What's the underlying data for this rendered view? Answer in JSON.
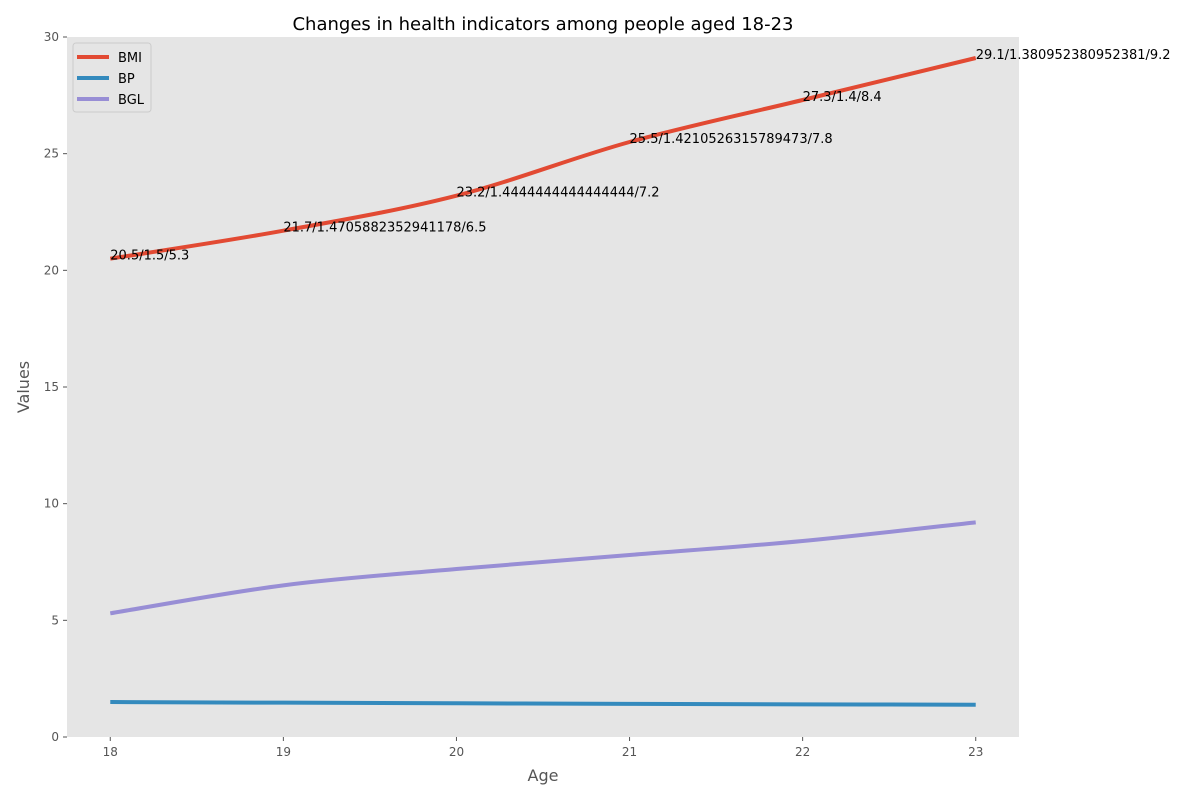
{
  "chart_data": {
    "type": "line",
    "title": "Changes in health indicators among people aged 18-23",
    "xlabel": "Age",
    "ylabel": "Values",
    "x": [
      18,
      19,
      20,
      21,
      22,
      23
    ],
    "xlim": [
      17.75,
      23.25
    ],
    "ylim": [
      0,
      30
    ],
    "xticks": [
      18,
      19,
      20,
      21,
      22,
      23
    ],
    "yticks": [
      0,
      5,
      10,
      15,
      20,
      25,
      30
    ],
    "grid": false,
    "legend": "top-left",
    "series": [
      {
        "name": "BMI",
        "color": "#E24A33",
        "values": [
          20.5,
          21.7,
          23.2,
          25.5,
          27.3,
          29.1
        ]
      },
      {
        "name": "BP",
        "color": "#348ABD",
        "values": [
          1.5,
          1.4705882352941178,
          1.4444444444444444,
          1.4210526315789473,
          1.4,
          1.380952380952381
        ]
      },
      {
        "name": "BGL",
        "color": "#988ED5",
        "values": [
          5.3,
          6.5,
          7.2,
          7.8,
          8.4,
          9.2
        ]
      }
    ],
    "annotations": [
      {
        "x": 18,
        "y": 20.5,
        "text": "20.5/1.5/5.3"
      },
      {
        "x": 19,
        "y": 21.7,
        "text": "21.7/1.4705882352941178/6.5"
      },
      {
        "x": 20,
        "y": 23.2,
        "text": "23.2/1.4444444444444444/7.2"
      },
      {
        "x": 21,
        "y": 25.5,
        "text": "25.5/1.4210526315789473/7.8"
      },
      {
        "x": 22,
        "y": 27.3,
        "text": "27.3/1.4/8.4"
      },
      {
        "x": 23,
        "y": 29.1,
        "text": "29.1/1.380952380952381/9.2"
      }
    ],
    "colors": {
      "plot_background": "#E5E5E5",
      "tick_text": "#555555"
    }
  }
}
